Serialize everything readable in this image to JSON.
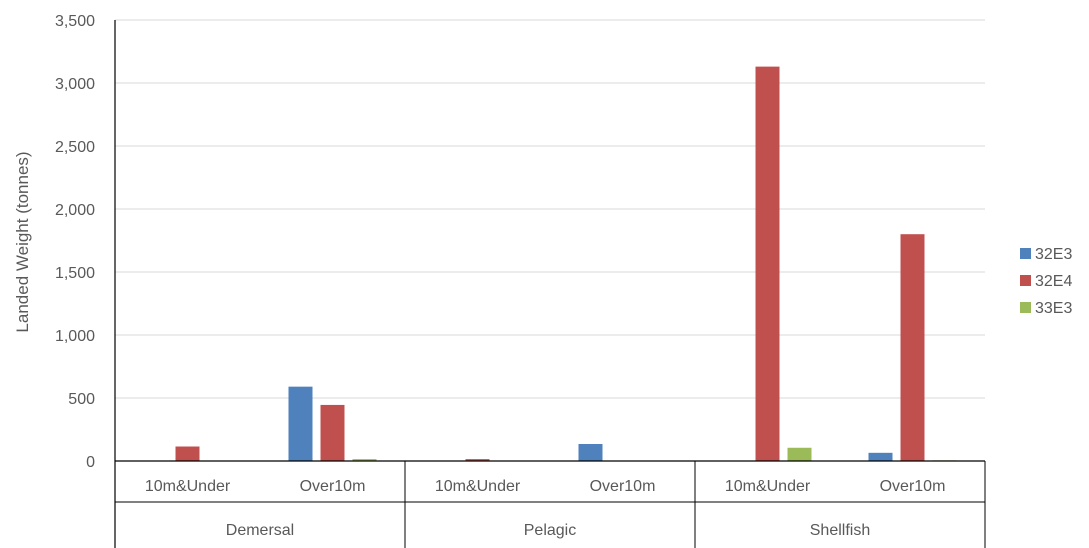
{
  "chart_data": {
    "type": "bar",
    "title": "",
    "ylabel": "Landed Weight (tonnes)",
    "xlabel": "",
    "ylim": [
      0,
      3500
    ],
    "yticks": [
      0,
      500,
      1000,
      1500,
      2000,
      2500,
      3000,
      3500
    ],
    "ytick_labels": [
      "0",
      "500",
      "1,000",
      "1,500",
      "2,000",
      "2,500",
      "3,000",
      "3,500"
    ],
    "grid": true,
    "legend_position": "right",
    "groups": [
      {
        "label": "Demersal",
        "categories": [
          "10m&Under",
          "Over10m"
        ]
      },
      {
        "label": "Pelagic",
        "categories": [
          "10m&Under",
          "Over10m"
        ]
      },
      {
        "label": "Shellfish",
        "categories": [
          "10m&Under",
          "Over10m"
        ]
      }
    ],
    "series": [
      {
        "name": "32E3",
        "color": "#4F81BD",
        "values": [
          0,
          590,
          0,
          135,
          0,
          65
        ]
      },
      {
        "name": "32E4",
        "color": "#C0504D",
        "values": [
          115,
          445,
          15,
          0,
          3130,
          1800
        ]
      },
      {
        "name": "33E3",
        "color": "#9BBB59",
        "values": [
          0,
          15,
          0,
          0,
          105,
          5
        ]
      }
    ]
  }
}
